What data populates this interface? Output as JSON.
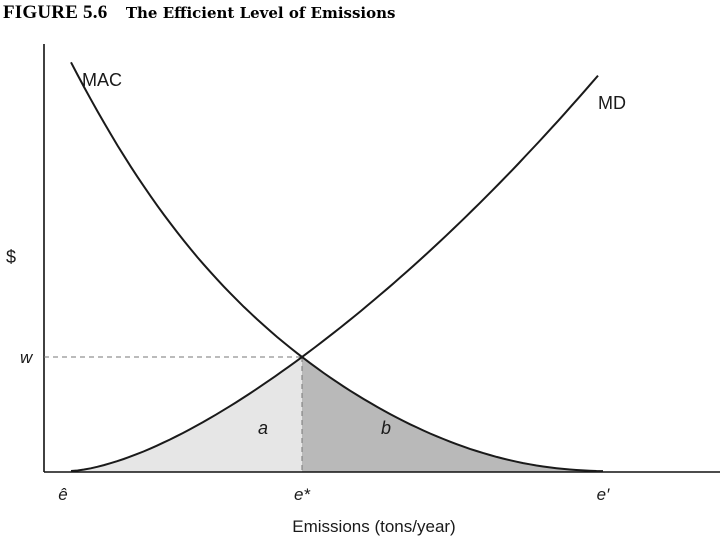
{
  "figure": {
    "number": "FIGURE 5.6",
    "title": "The Efficient Level of Emissions"
  },
  "chart_data": {
    "type": "line",
    "title": "The Efficient Level of Emissions",
    "xlabel": "Emissions (tons/year)",
    "ylabel": "$",
    "x_ticks": [
      "ê",
      "e*",
      "e′"
    ],
    "y_ticks": [
      "w"
    ],
    "series": [
      {
        "name": "MAC",
        "description": "marginal abatement cost, decreasing in emissions"
      },
      {
        "name": "MD",
        "description": "marginal damages, increasing in emissions"
      }
    ],
    "areas": [
      {
        "label": "a",
        "color": "#e6e6e6"
      },
      {
        "label": "b",
        "color": "#b9b9b9"
      }
    ],
    "grid": false
  }
}
